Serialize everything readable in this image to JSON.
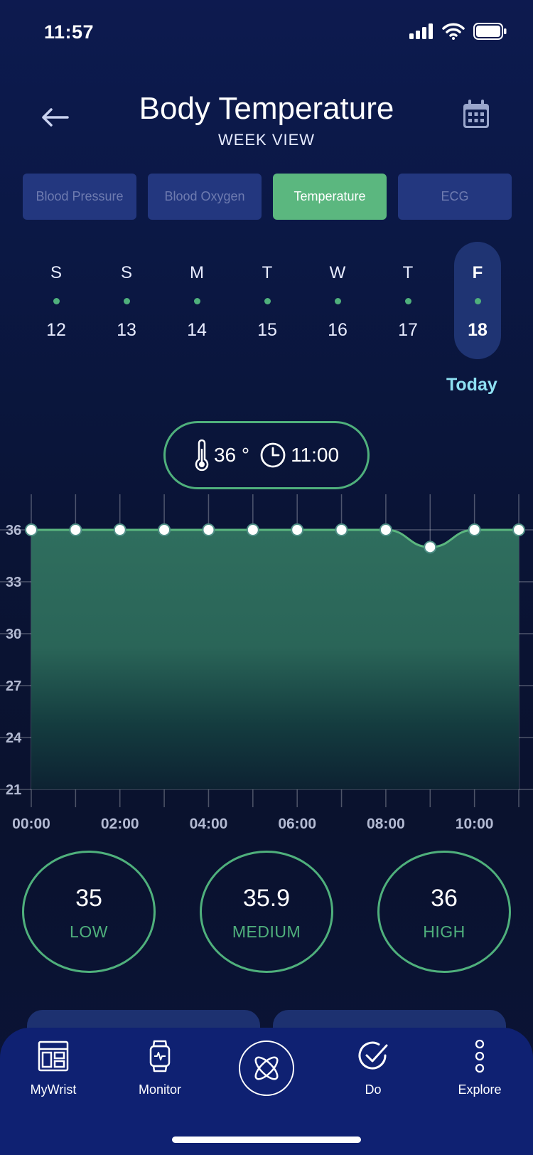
{
  "status_bar": {
    "time": "11:57"
  },
  "header": {
    "title": "Body Temperature",
    "subtitle": "WEEK VIEW"
  },
  "tabs": [
    {
      "label": "Blood Pressure",
      "active": false
    },
    {
      "label": "Blood Oxygen",
      "active": false
    },
    {
      "label": "Temperature",
      "active": true
    },
    {
      "label": "ECG",
      "active": false
    }
  ],
  "week": {
    "days": [
      {
        "name": "S",
        "date": "12"
      },
      {
        "name": "S",
        "date": "13"
      },
      {
        "name": "M",
        "date": "14"
      },
      {
        "name": "T",
        "date": "15"
      },
      {
        "name": "W",
        "date": "16"
      },
      {
        "name": "T",
        "date": "17"
      },
      {
        "name": "F",
        "date": "18",
        "selected": true
      }
    ],
    "today_label": "Today"
  },
  "reading": {
    "temperature": "36 °",
    "time": "11:00"
  },
  "chart_data": {
    "type": "area",
    "x": [
      "00:00",
      "01:00",
      "02:00",
      "03:00",
      "04:00",
      "05:00",
      "06:00",
      "07:00",
      "08:00",
      "09:00",
      "10:00",
      "11:00"
    ],
    "values": [
      36,
      36,
      36,
      36,
      36,
      36,
      36,
      36,
      36,
      35,
      36,
      36
    ],
    "ylim": [
      21,
      36
    ],
    "y_ticks": [
      "36",
      "33",
      "30",
      "27",
      "24",
      "21"
    ],
    "x_tick_labels": [
      "00:00",
      "02:00",
      "04:00",
      "06:00",
      "08:00",
      "10:00"
    ],
    "grid": true,
    "colors": {
      "line": "#5bb77f",
      "fill": "#2e6d5e"
    }
  },
  "stats": [
    {
      "value": "35",
      "label": "LOW"
    },
    {
      "value": "35.9",
      "label": "MEDIUM"
    },
    {
      "value": "36",
      "label": "HIGH"
    }
  ],
  "nav": {
    "items": [
      {
        "label": "MyWrist",
        "icon": "dashboard-icon"
      },
      {
        "label": "Monitor",
        "icon": "watch-icon"
      },
      {
        "label": "Do",
        "icon": "check-circle-icon"
      },
      {
        "label": "Explore",
        "icon": "more-vertical-icon"
      }
    ],
    "center_icon": "logo-icon"
  }
}
